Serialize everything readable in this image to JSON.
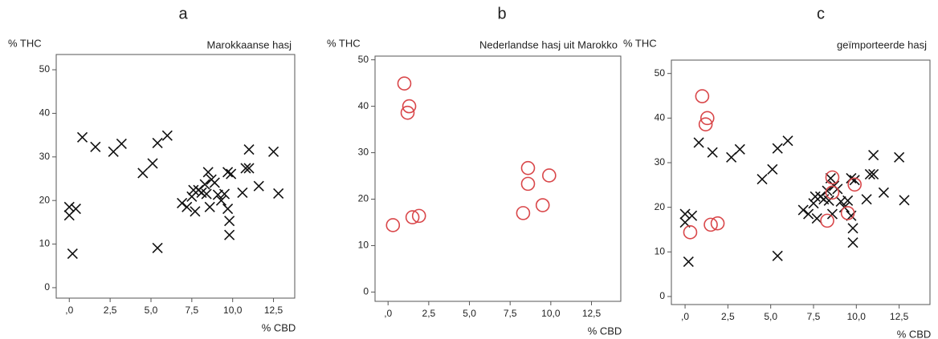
{
  "chart_data": [
    {
      "type": "scatter",
      "label": "a",
      "title": "Marokkaanse hasj",
      "ylabel": "% THC",
      "xlabel": "% CBD",
      "xlim": [
        -0.8,
        13.8
      ],
      "ylim": [
        -2.4,
        53.5
      ],
      "xticks": [
        {
          "value": 0,
          "label": ",0"
        },
        {
          "value": 2.5,
          "label": "2,5"
        },
        {
          "value": 5,
          "label": "5,0"
        },
        {
          "value": 7.5,
          "label": "7,5"
        },
        {
          "value": 10,
          "label": "10,0"
        },
        {
          "value": 12.5,
          "label": "12,5"
        }
      ],
      "yticks": [
        0,
        10,
        20,
        30,
        40,
        50
      ],
      "series": [
        {
          "marker": "x",
          "color": "#111111",
          "x": [
            0.0,
            0.0,
            0.4,
            0.2,
            0.8,
            1.6,
            2.7,
            3.2,
            4.5,
            5.1,
            5.4,
            6.0,
            5.4,
            6.9,
            7.2,
            7.5,
            7.7,
            7.6,
            7.9,
            8.1,
            8.3,
            8.4,
            8.5,
            8.7,
            8.9,
            8.6,
            9.1,
            9.3,
            9.5,
            9.7,
            9.9,
            9.7,
            9.8,
            9.8,
            10.6,
            10.8,
            11.0,
            11.0,
            11.6,
            12.5,
            12.8
          ],
          "y": [
            18.5,
            16.6,
            18.1,
            7.8,
            34.5,
            32.3,
            31.2,
            33.0,
            26.3,
            28.5,
            33.2,
            34.9,
            9.1,
            19.4,
            18.5,
            20.9,
            17.5,
            22.4,
            22.4,
            21.8,
            23.7,
            21.5,
            26.5,
            24.8,
            24.1,
            18.5,
            21.3,
            20.0,
            21.5,
            26.5,
            26.1,
            18.1,
            15.3,
            12.1,
            21.8,
            27.4,
            27.4,
            31.7,
            23.3,
            31.2,
            21.6
          ]
        }
      ]
    },
    {
      "type": "scatter",
      "label": "b",
      "title": "Nederlandse hasj uit Marokko",
      "ylabel": "% THC",
      "xlabel": "% CBD",
      "xlim": [
        -0.8,
        14.3
      ],
      "ylim": [
        -2.0,
        50.8
      ],
      "xticks": [
        {
          "value": 0,
          "label": ",0"
        },
        {
          "value": 2.5,
          "label": "2,5"
        },
        {
          "value": 5,
          "label": "5,0"
        },
        {
          "value": 7.5,
          "label": "7,5"
        },
        {
          "value": 10,
          "label": "10,0"
        },
        {
          "value": 12.5,
          "label": "12,5"
        }
      ],
      "yticks": [
        0,
        10,
        20,
        30,
        40,
        50
      ],
      "series": [
        {
          "marker": "o",
          "color": "#d9474a",
          "x": [
            1.0,
            1.3,
            1.2,
            0.3,
            1.5,
            1.9,
            8.6,
            8.6,
            9.9,
            8.3,
            9.5
          ],
          "y": [
            44.9,
            40.0,
            38.6,
            14.4,
            16.1,
            16.4,
            26.7,
            23.3,
            25.1,
            17.0,
            18.7
          ]
        }
      ]
    },
    {
      "type": "scatter",
      "label": "c",
      "title": "geïmporteerde hasj",
      "ylabel": "% THC",
      "xlabel": "% CBD",
      "xlim": [
        -0.8,
        14.3
      ],
      "ylim": [
        -1.8,
        53.0
      ],
      "xticks": [
        {
          "value": 0,
          "label": ",0"
        },
        {
          "value": 2.5,
          "label": "2,5"
        },
        {
          "value": 5,
          "label": "5,0"
        },
        {
          "value": 7.5,
          "label": "7,5"
        },
        {
          "value": 10,
          "label": "10,0"
        },
        {
          "value": 12.5,
          "label": "12,5"
        }
      ],
      "yticks": [
        0,
        10,
        20,
        30,
        40,
        50
      ],
      "series": [
        {
          "marker": "x",
          "color": "#111111",
          "x": [
            0.0,
            0.0,
            0.4,
            0.2,
            0.8,
            1.6,
            2.7,
            3.2,
            4.5,
            5.1,
            5.4,
            6.0,
            5.4,
            6.9,
            7.2,
            7.5,
            7.7,
            7.6,
            7.9,
            8.1,
            8.3,
            8.4,
            8.5,
            8.7,
            8.9,
            8.6,
            9.1,
            9.3,
            9.5,
            9.7,
            9.9,
            9.7,
            9.8,
            9.8,
            10.6,
            10.8,
            11.0,
            11.0,
            11.6,
            12.5,
            12.8
          ],
          "y": [
            18.5,
            16.6,
            18.1,
            7.8,
            34.5,
            32.3,
            31.2,
            33.0,
            26.3,
            28.5,
            33.2,
            34.9,
            9.1,
            19.4,
            18.5,
            20.9,
            17.5,
            22.4,
            22.4,
            21.8,
            23.7,
            21.5,
            26.5,
            24.8,
            24.1,
            18.5,
            21.3,
            20.0,
            21.5,
            26.5,
            26.1,
            18.1,
            15.3,
            12.1,
            21.8,
            27.4,
            27.4,
            31.7,
            23.3,
            31.2,
            21.6
          ]
        },
        {
          "marker": "o",
          "color": "#d9474a",
          "x": [
            1.0,
            1.3,
            1.2,
            0.3,
            1.5,
            1.9,
            8.6,
            8.6,
            9.9,
            8.3,
            9.5
          ],
          "y": [
            44.9,
            40.0,
            38.6,
            14.4,
            16.1,
            16.4,
            26.7,
            23.3,
            25.1,
            17.0,
            18.7
          ]
        }
      ]
    }
  ]
}
